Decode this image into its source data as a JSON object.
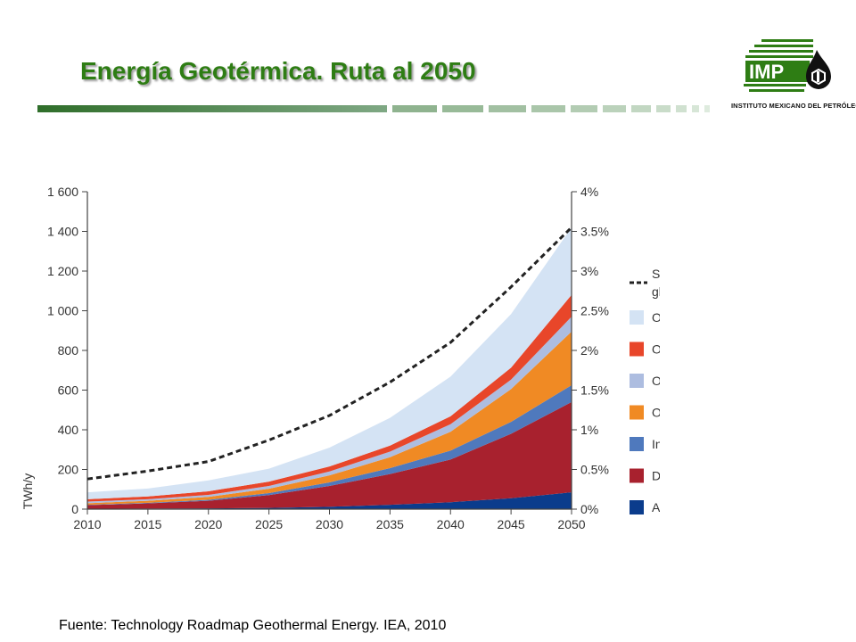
{
  "slide": {
    "title": "Energía Geotérmica. Ruta al 2050",
    "source": "Fuente: Technology Roadmap Geothermal Energy. IEA, 2010"
  },
  "logo": {
    "acronym": "IMP",
    "name": "INSTITUTO MEXICANO DEL PETRÓLEO",
    "green": "#2e7d14"
  },
  "chart_data": {
    "type": "area",
    "stacked": true,
    "title": "",
    "x": [
      2010,
      2015,
      2020,
      2025,
      2030,
      2035,
      2040,
      2045,
      2050
    ],
    "ylabel": "TWh/y",
    "ylim": [
      0,
      1600
    ],
    "yticks": [
      0,
      200,
      400,
      600,
      800,
      1000,
      1200,
      1400,
      1600
    ],
    "ytick_labels": [
      "0",
      "200",
      "400",
      "600",
      "800",
      "1 000",
      "1 200",
      "1 400",
      "1 600"
    ],
    "y2lim": [
      0,
      4
    ],
    "y2ticks": [
      0,
      0.5,
      1,
      1.5,
      2,
      2.5,
      3,
      3.5,
      4
    ],
    "y2tick_labels": [
      "0%",
      "0.5%",
      "1%",
      "1.5%",
      "2%",
      "2.5%",
      "3%",
      "3.5%",
      "4%"
    ],
    "grid": false,
    "legend_position": "right",
    "series": [
      {
        "name": "Africa and Middle East",
        "color": "#0b3c8c",
        "values": [
          2,
          3,
          4,
          6,
          12,
          22,
          35,
          55,
          85
        ]
      },
      {
        "name": "Developing Asia",
        "color": "#a8212e",
        "values": [
          18,
          26,
          38,
          65,
          105,
          155,
          215,
          325,
          455
        ]
      },
      {
        "name": "India and China",
        "color": "#4f79bd",
        "values": [
          2,
          3,
          5,
          10,
          18,
          30,
          45,
          60,
          85
        ]
      },
      {
        "name": "Other",
        "color": "#f08a24",
        "values": [
          8,
          10,
          15,
          22,
          35,
          55,
          95,
          165,
          270
        ]
      },
      {
        "name": "OECD Pacific",
        "color": "#adbde0",
        "values": [
          8,
          8,
          10,
          14,
          20,
          28,
          38,
          48,
          75
        ]
      },
      {
        "name": "OECD Europe",
        "color": "#e8462a",
        "values": [
          12,
          14,
          18,
          22,
          25,
          30,
          40,
          60,
          110
        ]
      },
      {
        "name": "OECD North America",
        "color": "#d4e3f4",
        "values": [
          35,
          40,
          55,
          65,
          95,
          140,
          200,
          270,
          340
        ]
      }
    ],
    "line_series": {
      "name": "Share of global electricity generation (%)",
      "axis": "right",
      "color": "#222222",
      "style": "dashed",
      "values": [
        0.38,
        0.48,
        0.6,
        0.87,
        1.18,
        1.6,
        2.1,
        2.8,
        3.55
      ]
    }
  }
}
